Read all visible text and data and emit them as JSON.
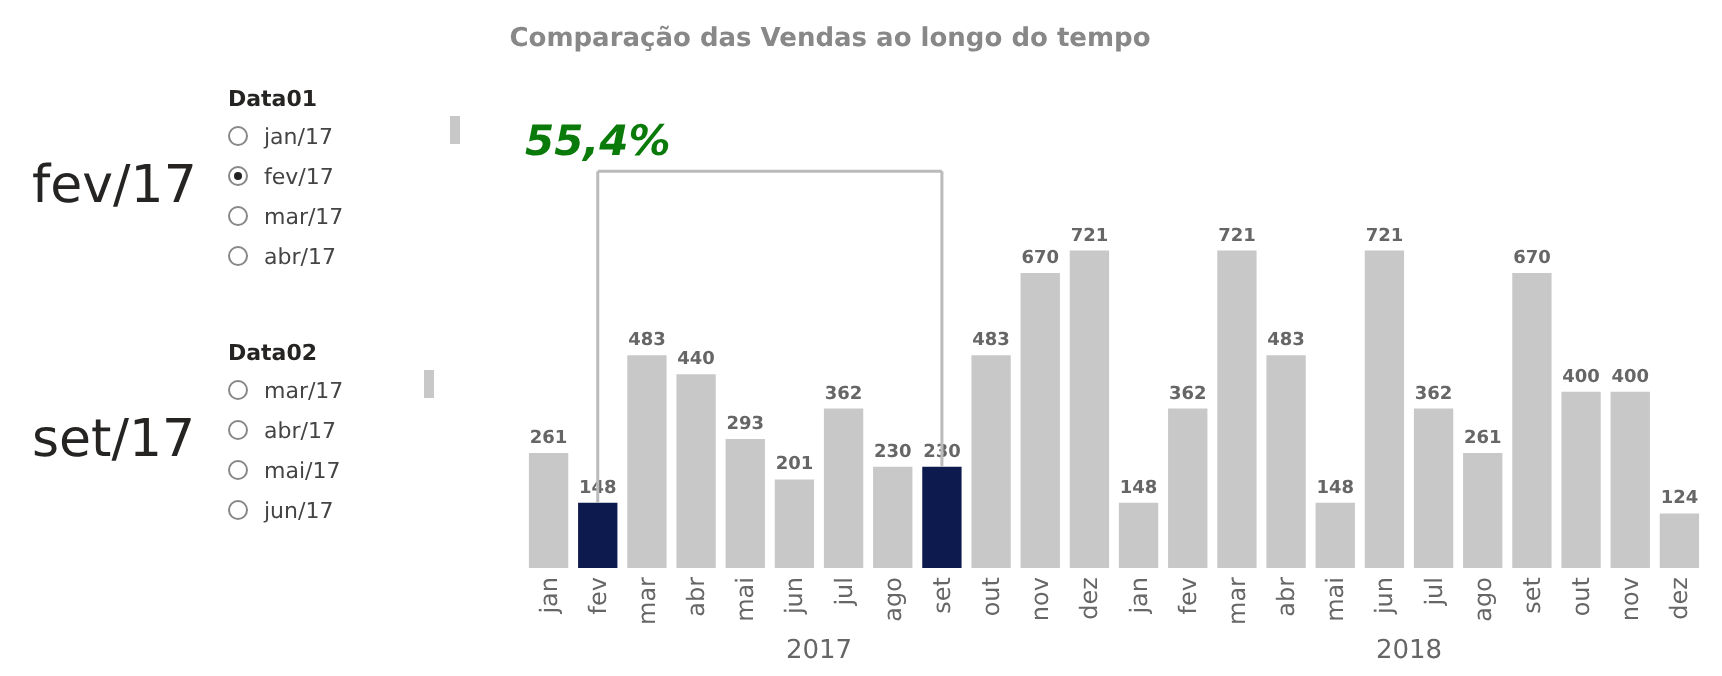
{
  "chart_data": [
    {
      "type": "bar",
      "title": "Comparação das Vendas ao longo do tempo",
      "categories": [
        "jan",
        "fev",
        "mar",
        "abr",
        "mai",
        "jun",
        "jul",
        "ago",
        "set",
        "out",
        "nov",
        "dez",
        "jan",
        "fev",
        "mar",
        "abr",
        "mai",
        "jun",
        "jul",
        "ago",
        "set",
        "out",
        "nov",
        "dez"
      ],
      "values": [
        261,
        148,
        483,
        440,
        293,
        201,
        362,
        230,
        230,
        483,
        670,
        721,
        148,
        362,
        721,
        483,
        148,
        721,
        362,
        261,
        670,
        400,
        400,
        124
      ],
      "colors": [
        "#c8c8c8",
        "#0d1a4e",
        "#c8c8c8",
        "#c8c8c8",
        "#c8c8c8",
        "#c8c8c8",
        "#c8c8c8",
        "#c8c8c8",
        "#0d1a4e",
        "#c8c8c8",
        "#c8c8c8",
        "#c8c8c8",
        "#c8c8c8",
        "#c8c8c8",
        "#c8c8c8",
        "#c8c8c8",
        "#c8c8c8",
        "#c8c8c8",
        "#c8c8c8",
        "#c8c8c8",
        "#c8c8c8",
        "#c8c8c8",
        "#c8c8c8",
        "#c8c8c8"
      ],
      "data_labels": true,
      "annotations": [
        "55,4%",
        "2017",
        "2018"
      ]
    },
    {
      "type": "other",
      "title": "Data01",
      "subtitle": "fev/17",
      "categories": [
        "jan/17",
        "fev/17",
        "mar/17",
        "abr/17"
      ]
    },
    {
      "type": "other",
      "title": "Data02",
      "subtitle": "set/17",
      "categories": [
        "mar/17",
        "abr/17",
        "mai/17",
        "jun/17"
      ]
    }
  ]
}
